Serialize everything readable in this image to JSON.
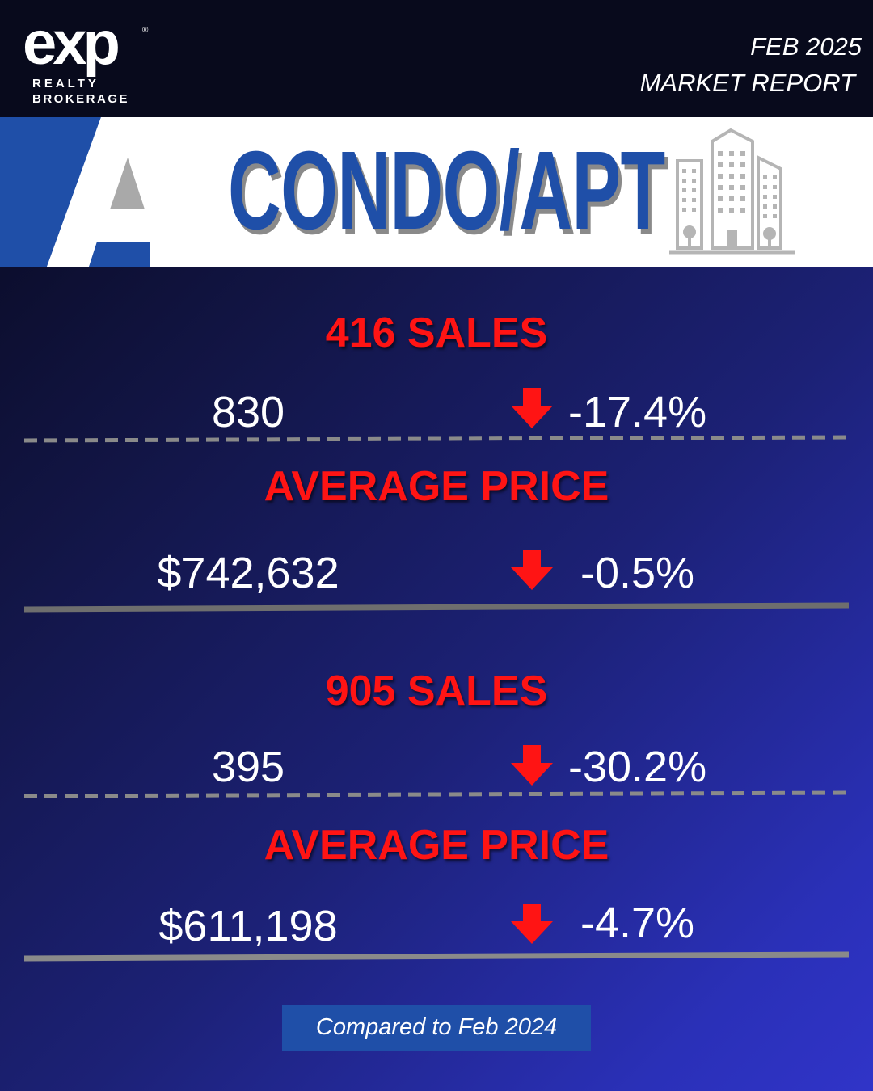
{
  "brand": {
    "logo_main": "exp",
    "logo_registered": "®",
    "logo_line1": "REALTY",
    "logo_line2": "BROKERAGE"
  },
  "header": {
    "date": "FEB 2025",
    "title": "MARKET REPORT"
  },
  "banner": {
    "title": "CONDO/APT",
    "icon": "building-icon",
    "accent_color": "#1f4fa8"
  },
  "sections": [
    {
      "sales_title": "416 SALES",
      "sales_value": "830",
      "sales_change": "-17.4%",
      "price_title": "AVERAGE PRICE",
      "price_value": "$742,632",
      "price_change": "-0.5%"
    },
    {
      "sales_title": "905 SALES",
      "sales_value": "395",
      "sales_change": "-30.2%",
      "price_title": "AVERAGE PRICE",
      "price_value": "$611,198",
      "price_change": "-4.7%"
    }
  ],
  "indicators": {
    "arrow_icon": "arrow-down-icon",
    "arrow_color": "#ff1414",
    "title_color": "#ff1414"
  },
  "footer": {
    "note": "Compared to Feb 2024"
  }
}
